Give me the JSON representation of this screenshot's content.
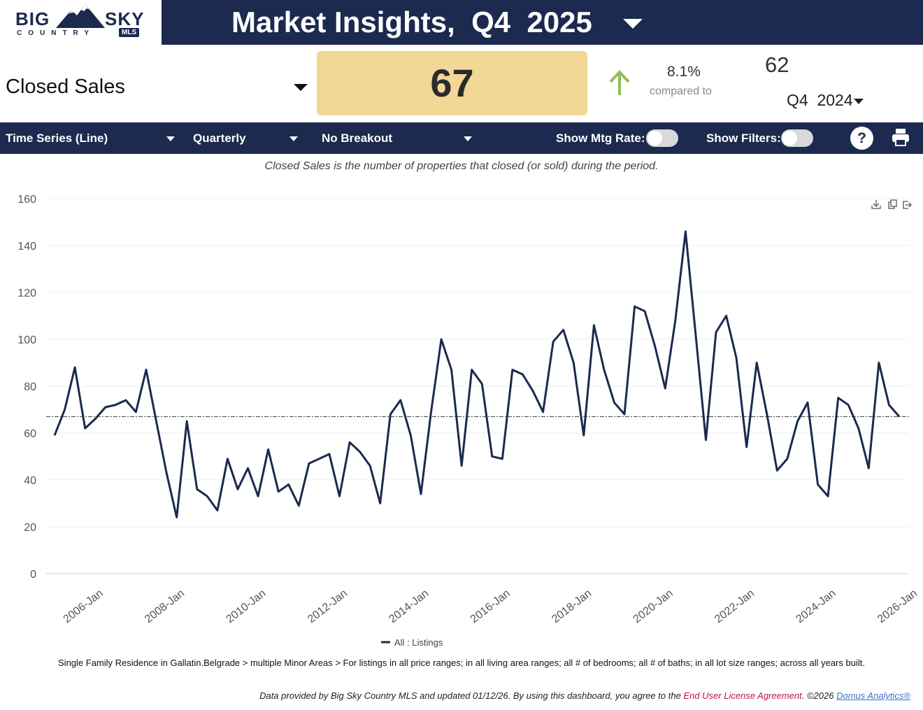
{
  "logo": {
    "big": "BIG",
    "sky": "SKY",
    "country": "COUNTRY",
    "mls": "MLS"
  },
  "header": {
    "title": "Market Insights,  Q4  2025"
  },
  "kpi": {
    "metric": "Closed Sales",
    "value": "67",
    "change_pct": "8.1%",
    "compared_label": "compared to",
    "prior_value": "62",
    "prior_period": "Q4  2024"
  },
  "toolbar": {
    "chart_type": "Time Series (Line)",
    "interval": "Quarterly",
    "breakout": "No Breakout",
    "mtg_rate_label": "Show Mtg Rate:",
    "filters_label": "Show Filters:",
    "help": "?"
  },
  "description": "Closed Sales is the number of properties that closed (or sold) during the period.",
  "chart_data": {
    "type": "line",
    "title": "",
    "xlabel": "",
    "ylabel": "",
    "ylim": [
      0,
      160
    ],
    "yticks": [
      0,
      20,
      40,
      60,
      80,
      100,
      120,
      140,
      160
    ],
    "x_start": "2005-Q1",
    "xtick_labels": [
      "2006-Jan",
      "2008-Jan",
      "2010-Jan",
      "2012-Jan",
      "2014-Jan",
      "2016-Jan",
      "2018-Jan",
      "2020-Jan",
      "2022-Jan",
      "2024-Jan",
      "2026-Jan"
    ],
    "xtick_index": [
      4,
      12,
      20,
      28,
      36,
      44,
      52,
      60,
      68,
      76,
      84
    ],
    "reference_line": 67,
    "series": [
      {
        "name": "All : Listings",
        "color": "#1b2a4e",
        "values": [
          59,
          70,
          88,
          62,
          66,
          71,
          72,
          74,
          69,
          87,
          65,
          43,
          24,
          65,
          36,
          33,
          27,
          49,
          36,
          45,
          33,
          53,
          35,
          38,
          29,
          47,
          49,
          51,
          33,
          56,
          52,
          46,
          30,
          68,
          74,
          59,
          34,
          69,
          100,
          87,
          46,
          87,
          81,
          50,
          49,
          87,
          85,
          78,
          69,
          99,
          104,
          90,
          59,
          106,
          87,
          73,
          68,
          114,
          112,
          97,
          79,
          108,
          146,
          102,
          57,
          103,
          110,
          92,
          54,
          90,
          68,
          44,
          49,
          65,
          73,
          38,
          33,
          75,
          72,
          62,
          45,
          90,
          72,
          67
        ]
      }
    ],
    "legend": "bottom-center"
  },
  "footnote": "Single Family Residence in Gallatin.Belgrade > multiple Minor Areas > For listings in all price ranges; in all living area ranges; all # of bedrooms; all # of baths; in all lot size ranges; across all years built.",
  "footer": {
    "prefix": "Data provided by Big Sky Country MLS and updated 01/12/26.  By using this dashboard, you agree to the ",
    "eula": "End User License Agreement",
    "middle": ".  ©2026 ",
    "domus": "Domus Analytics®"
  },
  "colors": {
    "navy": "#1b2a4e",
    "kpi_bg": "#f2d796",
    "up_arrow": "#8fbf5a"
  }
}
